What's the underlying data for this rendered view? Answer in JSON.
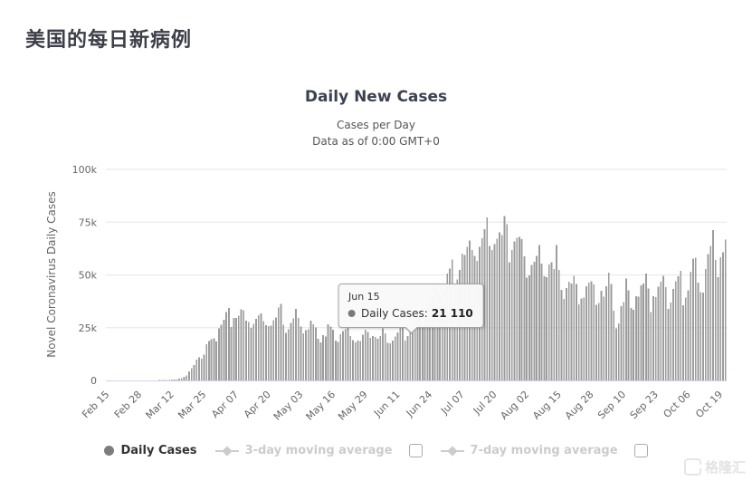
{
  "page": {
    "title": "美国的每日新病例"
  },
  "chart": {
    "title": "Daily New Cases",
    "subtitle_line1": "Cases per Day",
    "subtitle_line2": "Data as of 0:00 GMT+0",
    "y_axis_title": "Novel Coronavirus Daily Cases"
  },
  "tooltip": {
    "date": "Jun 15",
    "series_label": "Daily Cases:",
    "value": "21 110"
  },
  "legend": {
    "items": [
      {
        "label": "Daily Cases",
        "marker": "circle",
        "active": true,
        "has_checkbox": false
      },
      {
        "label": "3-day moving average",
        "marker": "diamond-line",
        "active": false,
        "has_checkbox": true
      },
      {
        "label": "7-day moving average",
        "marker": "diamond-line",
        "active": false,
        "has_checkbox": true
      }
    ]
  },
  "watermark": {
    "text": "格隆汇"
  },
  "colors": {
    "bar": "#9c9c9c",
    "gridline": "#e6e6e6",
    "axis_line": "#ccd6eb",
    "axis_label": "#666666",
    "legend_active": "#333333",
    "legend_muted": "#cccccc"
  },
  "chart_data": {
    "type": "bar",
    "title": "Daily New Cases",
    "subtitle": "Cases per Day — Data as of 0:00 GMT+0",
    "xlabel": "",
    "ylabel": "Novel Coronavirus Daily Cases",
    "ylim": [
      0,
      100000
    ],
    "y_ticks": [
      0,
      25000,
      50000,
      75000,
      100000
    ],
    "y_tick_labels": [
      "0",
      "25k",
      "50k",
      "75k",
      "100k"
    ],
    "x_start_label": "Feb 15",
    "x_tick_labels": [
      "Feb 15",
      "Feb 28",
      "Mar 12",
      "Mar 25",
      "Apr 07",
      "Apr 20",
      "May 03",
      "May 16",
      "May 29",
      "Jun 11",
      "Jun 24",
      "Jul 07",
      "Jul 20",
      "Aug 02",
      "Aug 15",
      "Aug 28",
      "Sep 10",
      "Sep 23",
      "Oct 06",
      "Oct 19"
    ],
    "x_tick_day_indices": [
      0,
      13,
      26,
      39,
      52,
      65,
      78,
      91,
      104,
      117,
      130,
      143,
      156,
      169,
      182,
      195,
      208,
      221,
      234,
      247
    ],
    "grid": true,
    "legend_position": "bottom",
    "highlight": {
      "label": "Jun 15",
      "index": 121,
      "value": 21110
    },
    "series": [
      {
        "name": "Daily Cases",
        "values": [
          0,
          0,
          0,
          0,
          0,
          1,
          0,
          2,
          0,
          0,
          0,
          0,
          0,
          5,
          8,
          6,
          20,
          14,
          30,
          68,
          80,
          110,
          130,
          170,
          220,
          290,
          350,
          430,
          530,
          780,
          1020,
          1710,
          2410,
          4200,
          5830,
          7400,
          9800,
          11000,
          10300,
          12200,
          17100,
          18700,
          19500,
          20000,
          18400,
          24700,
          26500,
          28800,
          32400,
          34300,
          25300,
          29600,
          29600,
          30600,
          33800,
          33300,
          28400,
          27600,
          25000,
          26900,
          29100,
          30800,
          31700,
          28200,
          26100,
          25800,
          26000,
          28600,
          29800,
          34500,
          36200,
          26500,
          22500,
          24300,
          27300,
          29500,
          33900,
          29700,
          25500,
          22300,
          23800,
          24300,
          28400,
          26700,
          25200,
          19700,
          18100,
          21500,
          20800,
          26700,
          25500,
          24000,
          18900,
          18300,
          21800,
          23300,
          24200,
          25400,
          21000,
          19100,
          18000,
          18900,
          18600,
          21700,
          24100,
          23000,
          20100,
          21000,
          20500,
          19700,
          21100,
          24700,
          22300,
          17900,
          17600,
          18900,
          20800,
          22800,
          25500,
          25300,
          18900,
          21110,
          23600,
          25500,
          27700,
          32200,
          32800,
          26000,
          31700,
          34700,
          36700,
          40200,
          45300,
          42000,
          38700,
          41000,
          42600,
          50700,
          53100,
          57200,
          45300,
          47800,
          52300,
          60000,
          59400,
          63200,
          66400,
          61800,
          59000,
          56600,
          63200,
          67300,
          71700,
          77300,
          63800,
          61800,
          64500,
          67100,
          70100,
          68800,
          78000,
          74100,
          56000,
          61800,
          65800,
          67600,
          68000,
          67000,
          58900,
          48700,
          49700,
          54700,
          56300,
          59000,
          64100,
          55300,
          49400,
          49000,
          54900,
          56000,
          52800,
          64100,
          52400,
          42900,
          38700,
          43700,
          46700,
          46000,
          49500,
          45800,
          36100,
          38800,
          39300,
          44600,
          46300,
          47100,
          45600,
          35900,
          36700,
          42500,
          39700,
          44600,
          51000,
          45700,
          33100,
          24600,
          27100,
          35300,
          37100,
          48200,
          42600,
          34300,
          33500,
          39900,
          39700,
          45100,
          46000,
          50700,
          43500,
          32400,
          39900,
          39400,
          44400,
          46700,
          49500,
          44300,
          33900,
          36900,
          43300,
          47000,
          49300,
          51900,
          35700,
          39200,
          42700,
          51500,
          57800,
          58200,
          46400,
          41800,
          41600,
          52700,
          59900,
          63700,
          71200,
          57100,
          48900,
          58400,
          60800,
          66800
        ]
      }
    ]
  }
}
